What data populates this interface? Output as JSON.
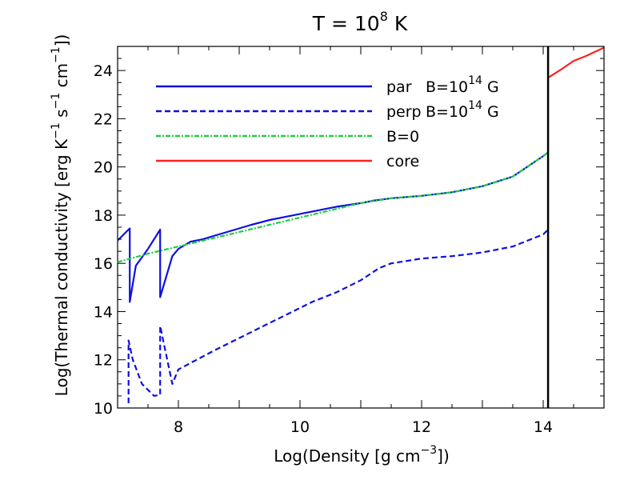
{
  "chart_data": {
    "type": "line",
    "title": {
      "base": "T = 10",
      "sup": "8",
      "suffix": " K"
    },
    "xlabel": {
      "base": "Log(Density [g cm",
      "sup": "−3",
      "suffix": "])"
    },
    "ylabel": {
      "p1": "Log(Thermal conductivity [erg K",
      "s1": "−1",
      "p2": " s",
      "s2": "−1",
      "p3": " cm",
      "s3": "−1",
      "p4": "])"
    },
    "xlim": [
      7,
      15
    ],
    "ylim": [
      10,
      25
    ],
    "xticks": [
      8,
      10,
      12,
      14
    ],
    "yticks": [
      10,
      12,
      14,
      16,
      18,
      20,
      22,
      24
    ],
    "vertical_line_x": 14.08,
    "legend_position": "top-left",
    "series": [
      {
        "name": "par",
        "legend": {
          "name": "par",
          "field": "B=10",
          "sup": "14",
          "unit": " G"
        },
        "style": "solid",
        "color": "#1010e0",
        "x": [
          7.0,
          7.1,
          7.2,
          7.2,
          7.3,
          7.5,
          7.7,
          7.7,
          7.9,
          8.0,
          8.2,
          8.4,
          8.6,
          8.8,
          9.0,
          9.2,
          9.5,
          9.8,
          10.0,
          10.3,
          10.6,
          11.0,
          11.2,
          11.5,
          12.0,
          12.5,
          13.0,
          13.5,
          14.0,
          14.08
        ],
        "values": [
          16.95,
          17.2,
          17.45,
          14.4,
          15.9,
          16.6,
          17.4,
          14.6,
          16.3,
          16.6,
          16.9,
          17.0,
          17.15,
          17.3,
          17.45,
          17.6,
          17.8,
          17.95,
          18.05,
          18.2,
          18.35,
          18.5,
          18.6,
          18.7,
          18.8,
          18.95,
          19.2,
          19.6,
          20.45,
          20.6
        ]
      },
      {
        "name": "perp",
        "legend": {
          "name": "perp",
          "field": "B=10",
          "sup": "14",
          "unit": " G"
        },
        "style": "dashed",
        "color": "#1010e0",
        "x": [
          7.18,
          7.18,
          7.25,
          7.4,
          7.6,
          7.7,
          7.7,
          7.9,
          8.0,
          8.3,
          8.6,
          9.0,
          9.4,
          9.8,
          10.2,
          10.6,
          11.0,
          11.3,
          11.5,
          12.0,
          12.5,
          13.0,
          13.5,
          14.0,
          14.08
        ],
        "values": [
          10.2,
          12.8,
          12.0,
          11.0,
          10.5,
          10.55,
          13.4,
          11.0,
          11.6,
          12.0,
          12.4,
          12.9,
          13.4,
          13.9,
          14.4,
          14.8,
          15.3,
          15.8,
          16.0,
          16.2,
          16.3,
          16.45,
          16.7,
          17.2,
          17.4
        ]
      },
      {
        "name": "B=0",
        "legend": {
          "name": "B=0",
          "field": "",
          "sup": "",
          "unit": ""
        },
        "style": "dashdot",
        "color": "#22cc44",
        "x": [
          7.0,
          7.5,
          8.0,
          8.5,
          9.0,
          9.5,
          10.0,
          10.5,
          11.0,
          11.5,
          12.0,
          12.5,
          13.0,
          13.5,
          14.0,
          14.08
        ],
        "values": [
          16.05,
          16.4,
          16.7,
          17.0,
          17.3,
          17.6,
          17.9,
          18.2,
          18.5,
          18.7,
          18.8,
          18.95,
          19.2,
          19.6,
          20.45,
          20.6
        ]
      },
      {
        "name": "core",
        "legend": {
          "name": "core",
          "field": "",
          "sup": "",
          "unit": ""
        },
        "style": "solid",
        "color": "#ff2020",
        "x": [
          14.08,
          14.3,
          14.5,
          14.7,
          15.0
        ],
        "values": [
          23.7,
          24.05,
          24.4,
          24.6,
          24.95
        ]
      }
    ]
  }
}
